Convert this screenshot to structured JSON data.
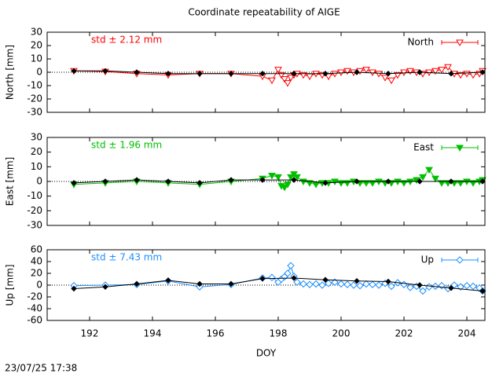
{
  "title": "Coordinate repeatability of AIGE",
  "timestamp": "23/07/25 17:38",
  "chart_data": [
    {
      "type": "line",
      "ylabel": "North [mm]",
      "annotation": "std ± 2.12 mm",
      "xlim": [
        190.65,
        204.575
      ],
      "xticks": [
        192,
        194,
        196,
        198,
        200,
        202,
        204
      ],
      "ylim": [
        -30,
        30
      ],
      "yticks": [
        -30,
        -20,
        -10,
        0,
        10,
        20,
        30
      ],
      "series": [
        {
          "name": "North",
          "color": "#ff0000",
          "marker": "triangle-down-open",
          "x": [
            191.5,
            192.5,
            193.5,
            194.5,
            195.5,
            196.5,
            197.5,
            197.8,
            198.0,
            198.1,
            198.2,
            198.3,
            198.4,
            198.5,
            198.6,
            198.8,
            199.0,
            199.2,
            199.4,
            199.6,
            199.8,
            200.0,
            200.2,
            200.4,
            200.6,
            200.8,
            201.0,
            201.2,
            201.4,
            201.6,
            201.8,
            202.0,
            202.2,
            202.4,
            202.6,
            202.8,
            203.0,
            203.2,
            203.4,
            203.6,
            203.8,
            204.0,
            204.2,
            204.4,
            204.5
          ],
          "values": [
            1,
            0.5,
            -1,
            -2,
            -1,
            -1,
            -3,
            -6,
            2,
            -2,
            -5,
            -8,
            -4,
            -2,
            -1,
            -2,
            -3,
            -1,
            -2,
            -3,
            -1,
            0,
            1,
            0,
            1,
            2,
            0,
            -1,
            -4,
            -6,
            -2,
            0,
            1,
            0,
            -1,
            0,
            1,
            2,
            4,
            -1,
            -2,
            -1,
            -2,
            -1,
            1
          ]
        },
        {
          "color": "#000000",
          "marker": "diamond-filled",
          "x": [
            191.5,
            192.5,
            193.5,
            194.5,
            195.5,
            196.5,
            197.5,
            198.5,
            199.5,
            200.5,
            201.5,
            202.5,
            203.5,
            204.5
          ],
          "values": [
            1,
            1,
            0,
            -1,
            -1,
            -1,
            -1,
            -1,
            -1,
            0,
            -1,
            0,
            -1,
            0
          ]
        }
      ]
    },
    {
      "type": "line",
      "ylabel": "East [mm]",
      "annotation": "std ± 1.96 mm",
      "xlim": [
        190.65,
        204.575
      ],
      "xticks": [
        192,
        194,
        196,
        198,
        200,
        202,
        204
      ],
      "ylim": [
        -30,
        30
      ],
      "yticks": [
        -30,
        -20,
        -10,
        0,
        10,
        20,
        30
      ],
      "series": [
        {
          "name": "East",
          "color": "#00c000",
          "marker": "triangle-down-filled",
          "x": [
            191.5,
            192.5,
            193.5,
            194.5,
            195.5,
            196.5,
            197.5,
            197.8,
            198.0,
            198.1,
            198.2,
            198.3,
            198.4,
            198.5,
            198.6,
            198.8,
            199.0,
            199.2,
            199.4,
            199.6,
            199.8,
            200.0,
            200.2,
            200.4,
            200.6,
            200.8,
            201.0,
            201.2,
            201.4,
            201.6,
            201.8,
            202.0,
            202.2,
            202.4,
            202.6,
            202.8,
            203.0,
            203.2,
            203.4,
            203.6,
            203.8,
            204.0,
            204.2,
            204.4,
            204.5
          ],
          "values": [
            -2,
            -1,
            0,
            -1,
            -2,
            0,
            2,
            4,
            3,
            -3,
            -4,
            -2,
            3,
            5,
            3,
            0,
            -1,
            -2,
            -1,
            -1,
            0,
            -1,
            -1,
            0,
            -1,
            -1,
            -1,
            0,
            -1,
            -1,
            0,
            -1,
            0,
            1,
            3,
            8,
            2,
            -1,
            -1,
            -1,
            -1,
            0,
            -1,
            0,
            1
          ]
        },
        {
          "color": "#000000",
          "marker": "diamond-filled",
          "x": [
            191.5,
            192.5,
            193.5,
            194.5,
            195.5,
            196.5,
            197.5,
            198.5,
            199.5,
            200.5,
            201.5,
            202.5,
            203.5,
            204.5
          ],
          "values": [
            -1,
            0,
            1,
            0,
            -1,
            1,
            1,
            1,
            -1,
            0,
            0,
            0,
            0,
            0
          ]
        }
      ]
    },
    {
      "type": "line",
      "ylabel": "Up [mm]",
      "annotation": "std ± 7.43 mm",
      "xlabel": "DOY",
      "xlim": [
        190.65,
        204.575
      ],
      "xticks": [
        192,
        194,
        196,
        198,
        200,
        202,
        204
      ],
      "ylim": [
        -60,
        60
      ],
      "yticks": [
        -60,
        -40,
        -20,
        0,
        20,
        40,
        60
      ],
      "series": [
        {
          "name": "Up",
          "color": "#1e90ff",
          "marker": "diamond-open",
          "x": [
            191.5,
            192.5,
            193.5,
            194.5,
            195.5,
            196.5,
            197.5,
            197.8,
            198.0,
            198.1,
            198.2,
            198.3,
            198.4,
            198.5,
            198.6,
            198.8,
            199.0,
            199.2,
            199.4,
            199.6,
            199.8,
            200.0,
            200.2,
            200.4,
            200.6,
            200.8,
            201.0,
            201.2,
            201.4,
            201.6,
            201.8,
            202.0,
            202.2,
            202.4,
            202.6,
            202.8,
            203.0,
            203.2,
            203.4,
            203.6,
            203.8,
            204.0,
            204.2,
            204.4,
            204.5
          ],
          "values": [
            -1,
            0,
            1,
            7,
            -3,
            1,
            12,
            13,
            5,
            10,
            14,
            20,
            33,
            15,
            5,
            2,
            1,
            2,
            0,
            3,
            5,
            2,
            1,
            0,
            -1,
            2,
            1,
            0,
            3,
            -2,
            4,
            1,
            -4,
            -2,
            -10,
            -3,
            -2,
            -1,
            -6,
            0,
            -3,
            -1,
            -2,
            -5,
            -10
          ]
        },
        {
          "color": "#000000",
          "marker": "diamond-filled",
          "x": [
            191.5,
            192.5,
            193.5,
            194.5,
            195.5,
            196.5,
            197.5,
            198.5,
            199.5,
            200.5,
            201.5,
            202.5,
            203.5,
            204.5
          ],
          "values": [
            -6,
            -3,
            2,
            8,
            2,
            2,
            11,
            12,
            9,
            7,
            6,
            0,
            -5,
            -10
          ]
        }
      ]
    }
  ]
}
